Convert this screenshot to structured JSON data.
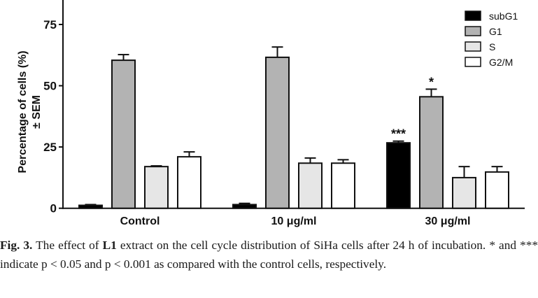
{
  "chart_data": {
    "type": "bar",
    "title": "",
    "xlabel": "",
    "ylabel": "Percentage of cells (%)",
    "ylabel_line2": "± SEM",
    "ylim": [
      0,
      85
    ],
    "yticks": [
      0,
      25,
      50,
      75
    ],
    "grid": false,
    "legend_position": "top-right",
    "categories": [
      "Control",
      "10 μg/ml",
      "30 μg/ml"
    ],
    "series": [
      {
        "name": "subG1",
        "color": "#000000",
        "values": [
          1.2,
          1.5,
          26.7
        ],
        "sem": [
          0.3,
          0.5,
          0.7
        ]
      },
      {
        "name": "G1",
        "color": "#b3b3b3",
        "values": [
          60.4,
          61.6,
          45.5
        ],
        "sem": [
          2.3,
          4.2,
          3.1
        ]
      },
      {
        "name": "S",
        "color": "#e6e6e6",
        "values": [
          17.0,
          18.4,
          12.5
        ],
        "sem": [
          0.3,
          2.1,
          4.5
        ]
      },
      {
        "name": "G2/M",
        "color": "#ffffff",
        "values": [
          21.0,
          18.4,
          14.8
        ],
        "sem": [
          2.0,
          1.4,
          2.2
        ]
      }
    ],
    "annotations": [
      {
        "text": "***",
        "category": "30 μg/ml",
        "series": "subG1"
      },
      {
        "text": "*",
        "category": "30 μg/ml",
        "series": "G1"
      }
    ]
  },
  "caption": {
    "fig_label": "Fig. 3.",
    "part1": " The effect of ",
    "extract_name": "L1",
    "part2": " extract on the cell cycle distribution of SiHa cells after 24 h of incubation. * and *** indicate p < 0.05 and p < 0.001 as compared with the control cells, respectively."
  }
}
